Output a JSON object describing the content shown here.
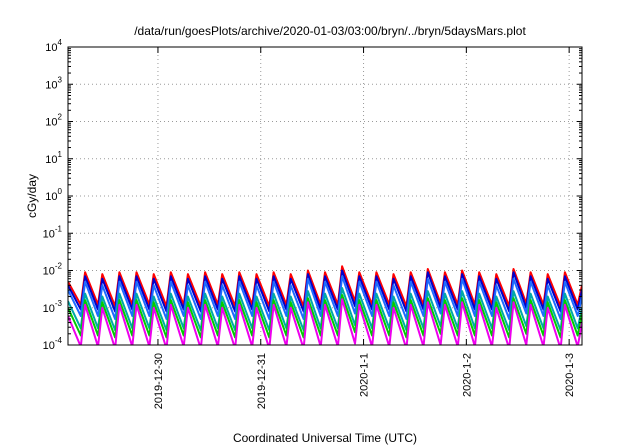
{
  "chart_data": {
    "type": "line",
    "title": "/data/run/goesPlots/archive/2020-01-03/03:00/bryn/../bryn/5daysMars.plot",
    "xlabel": "Coordinated Universal Time (UTC)",
    "ylabel": "cGy/day",
    "yscale": "log",
    "ylim": [
      0.0001,
      10000
    ],
    "xlim": [
      "2019-12-29 03:00",
      "2020-01-03 03:00"
    ],
    "grid": true,
    "y_ticks": [
      {
        "base": "10",
        "exp": "-4",
        "value": 0.0001
      },
      {
        "base": "10",
        "exp": "-3",
        "value": 0.001
      },
      {
        "base": "10",
        "exp": "-2",
        "value": 0.01
      },
      {
        "base": "10",
        "exp": "-1",
        "value": 0.1
      },
      {
        "base": "10",
        "exp": "0",
        "value": 1
      },
      {
        "base": "10",
        "exp": "1",
        "value": 10
      },
      {
        "base": "10",
        "exp": "2",
        "value": 100
      },
      {
        "base": "10",
        "exp": "3",
        "value": 1000
      },
      {
        "base": "10",
        "exp": "4",
        "value": 10000
      }
    ],
    "x_ticks": [
      {
        "label": "2019-12-30",
        "value": "2019-12-30 00:00"
      },
      {
        "label": "2019-12-31",
        "value": "2019-12-31 00:00"
      },
      {
        "label": "2020-1-1",
        "value": "2020-01-01 00:00"
      },
      {
        "label": "2020-1-2",
        "value": "2020-01-02 00:00"
      },
      {
        "label": "2020-1-3",
        "value": "2020-01-03 00:00"
      }
    ],
    "series": [
      {
        "color": "#ff0000",
        "x": [
          "2019-12-29 03:00",
          "2019-12-29 06:00",
          "2019-12-29 07:00",
          "2019-12-29 10:00",
          "2019-12-29 11:00",
          "2019-12-29 14:00",
          "2019-12-29 15:00",
          "2019-12-29 18:00",
          "2019-12-29 19:00",
          "2019-12-29 22:00",
          "2019-12-29 23:00",
          "2019-12-30 02:00",
          "2019-12-30 03:00",
          "2019-12-30 06:00",
          "2019-12-30 07:00",
          "2019-12-30 10:00",
          "2019-12-30 11:00",
          "2019-12-30 14:00",
          "2019-12-30 15:00",
          "2019-12-30 18:00",
          "2019-12-30 19:00",
          "2019-12-30 22:00",
          "2019-12-30 23:00",
          "2019-12-31 02:00",
          "2019-12-31 03:00",
          "2019-12-31 06:00",
          "2019-12-31 07:00",
          "2019-12-31 10:00",
          "2019-12-31 11:00",
          "2019-12-31 14:00",
          "2019-12-31 15:00",
          "2019-12-31 18:00",
          "2019-12-31 19:00",
          "2019-12-31 22:00",
          "2019-12-31 23:00",
          "2020-01-01 02:00",
          "2020-01-01 03:00",
          "2020-01-01 06:00",
          "2020-01-01 07:00",
          "2020-01-01 10:00",
          "2020-01-01 11:00",
          "2020-01-01 14:00",
          "2020-01-01 15:00",
          "2020-01-01 18:00",
          "2020-01-01 19:00",
          "2020-01-01 22:00",
          "2020-01-01 23:00",
          "2020-01-02 02:00",
          "2020-01-02 03:00",
          "2020-01-02 06:00",
          "2020-01-02 07:00",
          "2020-01-02 10:00",
          "2020-01-02 11:00",
          "2020-01-02 14:00",
          "2020-01-02 15:00",
          "2020-01-02 18:00",
          "2020-01-02 19:00",
          "2020-01-02 22:00",
          "2020-01-02 23:00",
          "2020-01-03 02:00",
          "2020-01-03 03:00"
        ],
        "y": [
          0.005,
          0.0012,
          0.009,
          0.0012,
          0.008,
          0.0011,
          0.009,
          0.0012,
          0.009,
          0.0012,
          0.008,
          0.0011,
          0.009,
          0.0012,
          0.008,
          0.0011,
          0.009,
          0.0012,
          0.008,
          0.0011,
          0.009,
          0.0012,
          0.008,
          0.0011,
          0.009,
          0.0012,
          0.008,
          0.0011,
          0.01,
          0.0012,
          0.009,
          0.0012,
          0.013,
          0.0015,
          0.009,
          0.0012,
          0.009,
          0.0012,
          0.008,
          0.0011,
          0.009,
          0.0012,
          0.011,
          0.0013,
          0.009,
          0.0012,
          0.01,
          0.0012,
          0.009,
          0.0012,
          0.008,
          0.0011,
          0.011,
          0.0013,
          0.009,
          0.0012,
          0.008,
          0.0011,
          0.009,
          0.0012,
          0.004
        ]
      },
      {
        "color": "#0000cc",
        "x": [
          "2019-12-29 03:00",
          "2019-12-29 06:00",
          "2019-12-29 07:00",
          "2019-12-29 10:00",
          "2019-12-29 11:00",
          "2019-12-29 14:00",
          "2019-12-29 15:00",
          "2019-12-29 18:00",
          "2019-12-29 19:00",
          "2019-12-29 22:00",
          "2019-12-29 23:00",
          "2019-12-30 02:00",
          "2019-12-30 03:00",
          "2019-12-30 06:00",
          "2019-12-30 07:00",
          "2019-12-30 10:00",
          "2019-12-30 11:00",
          "2019-12-30 14:00",
          "2019-12-30 15:00",
          "2019-12-30 18:00",
          "2019-12-30 19:00",
          "2019-12-30 22:00",
          "2019-12-30 23:00",
          "2019-12-31 02:00",
          "2019-12-31 03:00",
          "2019-12-31 06:00",
          "2019-12-31 07:00",
          "2019-12-31 10:00",
          "2019-12-31 11:00",
          "2019-12-31 14:00",
          "2019-12-31 15:00",
          "2019-12-31 18:00",
          "2019-12-31 19:00",
          "2019-12-31 22:00",
          "2019-12-31 23:00",
          "2020-01-01 02:00",
          "2020-01-01 03:00",
          "2020-01-01 06:00",
          "2020-01-01 07:00",
          "2020-01-01 10:00",
          "2020-01-01 11:00",
          "2020-01-01 14:00",
          "2020-01-01 15:00",
          "2020-01-01 18:00",
          "2020-01-01 19:00",
          "2020-01-01 22:00",
          "2020-01-01 23:00",
          "2020-01-02 02:00",
          "2020-01-02 03:00",
          "2020-01-02 06:00",
          "2020-01-02 07:00",
          "2020-01-02 10:00",
          "2020-01-02 11:00",
          "2020-01-02 14:00",
          "2020-01-02 15:00",
          "2020-01-02 18:00",
          "2020-01-02 19:00",
          "2020-01-02 22:00",
          "2020-01-02 23:00",
          "2020-01-03 02:00",
          "2020-01-03 03:00"
        ],
        "y": [
          0.004,
          0.0009,
          0.007,
          0.0009,
          0.006,
          0.0008,
          0.007,
          0.0009,
          0.007,
          0.0009,
          0.006,
          0.0008,
          0.007,
          0.0009,
          0.006,
          0.0008,
          0.007,
          0.0009,
          0.006,
          0.0008,
          0.007,
          0.0009,
          0.006,
          0.0008,
          0.007,
          0.0009,
          0.006,
          0.0008,
          0.008,
          0.0009,
          0.007,
          0.0009,
          0.01,
          0.0011,
          0.007,
          0.0009,
          0.007,
          0.0009,
          0.006,
          0.0008,
          0.007,
          0.0009,
          0.009,
          0.001,
          0.007,
          0.0009,
          0.008,
          0.0009,
          0.007,
          0.0009,
          0.006,
          0.0008,
          0.009,
          0.001,
          0.007,
          0.0009,
          0.006,
          0.0008,
          0.007,
          0.0009,
          0.003
        ]
      },
      {
        "color": "#1e6bff",
        "x": [
          "2019-12-29 03:00",
          "2019-12-29 06:00",
          "2019-12-29 07:00",
          "2019-12-29 10:00",
          "2019-12-29 11:00",
          "2019-12-29 14:00",
          "2019-12-29 15:00",
          "2019-12-29 18:00",
          "2019-12-29 19:00",
          "2019-12-29 22:00",
          "2019-12-29 23:00",
          "2019-12-30 02:00",
          "2019-12-30 03:00",
          "2019-12-30 06:00",
          "2019-12-30 07:00",
          "2019-12-30 10:00",
          "2019-12-30 11:00",
          "2019-12-30 14:00",
          "2019-12-30 15:00",
          "2019-12-30 18:00",
          "2019-12-30 19:00",
          "2019-12-30 22:00",
          "2019-12-30 23:00",
          "2019-12-31 02:00",
          "2019-12-31 03:00",
          "2019-12-31 06:00",
          "2019-12-31 07:00",
          "2019-12-31 10:00",
          "2019-12-31 11:00",
          "2019-12-31 14:00",
          "2019-12-31 15:00",
          "2019-12-31 18:00",
          "2019-12-31 19:00",
          "2019-12-31 22:00",
          "2019-12-31 23:00",
          "2020-01-01 02:00",
          "2020-01-01 03:00",
          "2020-01-01 06:00",
          "2020-01-01 07:00",
          "2020-01-01 10:00",
          "2020-01-01 11:00",
          "2020-01-01 14:00",
          "2020-01-01 15:00",
          "2020-01-01 18:00",
          "2020-01-01 19:00",
          "2020-01-01 22:00",
          "2020-01-01 23:00",
          "2020-01-02 02:00",
          "2020-01-02 03:00",
          "2020-01-02 06:00",
          "2020-01-02 07:00",
          "2020-01-02 10:00",
          "2020-01-02 11:00",
          "2020-01-02 14:00",
          "2020-01-02 15:00",
          "2020-01-02 18:00",
          "2020-01-02 19:00",
          "2020-01-02 22:00",
          "2020-01-02 23:00",
          "2020-01-03 02:00",
          "2020-01-03 03:00"
        ],
        "y": [
          0.003,
          0.0006,
          0.005,
          0.0006,
          0.004,
          0.0005,
          0.005,
          0.0006,
          0.005,
          0.0006,
          0.004,
          0.0005,
          0.005,
          0.0006,
          0.004,
          0.0005,
          0.005,
          0.0006,
          0.004,
          0.0005,
          0.005,
          0.0006,
          0.004,
          0.0005,
          0.005,
          0.0006,
          0.004,
          0.0005,
          0.006,
          0.0006,
          0.005,
          0.0006,
          0.007,
          0.0007,
          0.005,
          0.0006,
          0.005,
          0.0006,
          0.004,
          0.0005,
          0.005,
          0.0006,
          0.006,
          0.0007,
          0.005,
          0.0006,
          0.006,
          0.0006,
          0.005,
          0.0006,
          0.004,
          0.0005,
          0.006,
          0.0007,
          0.005,
          0.0006,
          0.004,
          0.0005,
          0.005,
          0.0006,
          0.002
        ]
      },
      {
        "color": "#00a8a8",
        "x": [
          "2019-12-29 03:00",
          "2019-12-29 06:00",
          "2019-12-29 07:00",
          "2019-12-29 10:00",
          "2019-12-29 11:00",
          "2019-12-29 14:00",
          "2019-12-29 15:00",
          "2019-12-29 18:00",
          "2019-12-29 19:00",
          "2019-12-29 22:00",
          "2019-12-29 23:00",
          "2019-12-30 02:00",
          "2019-12-30 03:00",
          "2019-12-30 06:00",
          "2019-12-30 07:00",
          "2019-12-30 10:00",
          "2019-12-30 11:00",
          "2019-12-30 14:00",
          "2019-12-30 15:00",
          "2019-12-30 18:00",
          "2019-12-30 19:00",
          "2019-12-30 22:00",
          "2019-12-30 23:00",
          "2019-12-31 02:00",
          "2019-12-31 03:00",
          "2019-12-31 06:00",
          "2019-12-31 07:00",
          "2019-12-31 10:00",
          "2019-12-31 11:00",
          "2019-12-31 14:00",
          "2019-12-31 15:00",
          "2019-12-31 18:00",
          "2019-12-31 19:00",
          "2019-12-31 22:00",
          "2019-12-31 23:00",
          "2020-01-01 02:00",
          "2020-01-01 03:00",
          "2020-01-01 06:00",
          "2020-01-01 07:00",
          "2020-01-01 10:00",
          "2020-01-01 11:00",
          "2020-01-01 14:00",
          "2020-01-01 15:00",
          "2020-01-01 18:00",
          "2020-01-01 19:00",
          "2020-01-01 22:00",
          "2020-01-01 23:00",
          "2020-01-02 02:00",
          "2020-01-02 03:00",
          "2020-01-02 06:00",
          "2020-01-02 07:00",
          "2020-01-02 10:00",
          "2020-01-02 11:00",
          "2020-01-02 14:00",
          "2020-01-02 15:00",
          "2020-01-02 18:00",
          "2020-01-02 19:00",
          "2020-01-02 22:00",
          "2020-01-02 23:00",
          "2020-01-03 02:00",
          "2020-01-03 03:00"
        ],
        "y": [
          0.0015,
          0.00028,
          0.0024,
          0.00028,
          0.002,
          0.00025,
          0.0024,
          0.00028,
          0.0024,
          0.00028,
          0.002,
          0.00025,
          0.0024,
          0.00028,
          0.002,
          0.00025,
          0.0024,
          0.00028,
          0.002,
          0.00025,
          0.0024,
          0.00028,
          0.002,
          0.00025,
          0.0024,
          0.00028,
          0.002,
          0.00025,
          0.0028,
          0.00028,
          0.0024,
          0.00028,
          0.0034,
          0.00034,
          0.0024,
          0.00028,
          0.0024,
          0.00028,
          0.002,
          0.00025,
          0.0024,
          0.00028,
          0.0028,
          0.00032,
          0.0024,
          0.00028,
          0.0028,
          0.00028,
          0.0024,
          0.00028,
          0.002,
          0.00025,
          0.0028,
          0.00032,
          0.0024,
          0.00028,
          0.002,
          0.00025,
          0.0024,
          0.00028,
          0.001
        ]
      },
      {
        "color": "#00cc00",
        "x": [
          "2019-12-29 03:00",
          "2019-12-29 06:00",
          "2019-12-29 07:00",
          "2019-12-29 10:00",
          "2019-12-29 11:00",
          "2019-12-29 14:00",
          "2019-12-29 15:00",
          "2019-12-29 18:00",
          "2019-12-29 19:00",
          "2019-12-29 22:00",
          "2019-12-29 23:00",
          "2019-12-30 02:00",
          "2019-12-30 03:00",
          "2019-12-30 06:00",
          "2019-12-30 07:00",
          "2019-12-30 10:00",
          "2019-12-30 11:00",
          "2019-12-30 14:00",
          "2019-12-30 15:00",
          "2019-12-30 18:00",
          "2019-12-30 19:00",
          "2019-12-30 22:00",
          "2019-12-30 23:00",
          "2019-12-31 02:00",
          "2019-12-31 03:00",
          "2019-12-31 06:00",
          "2019-12-31 07:00",
          "2019-12-31 10:00",
          "2019-12-31 11:00",
          "2019-12-31 14:00",
          "2019-12-31 15:00",
          "2019-12-31 18:00",
          "2019-12-31 19:00",
          "2019-12-31 22:00",
          "2019-12-31 23:00",
          "2020-01-01 02:00",
          "2020-01-01 03:00",
          "2020-01-01 06:00",
          "2020-01-01 07:00",
          "2020-01-01 10:00",
          "2020-01-01 11:00",
          "2020-01-01 14:00",
          "2020-01-01 15:00",
          "2020-01-01 18:00",
          "2020-01-01 19:00",
          "2020-01-01 22:00",
          "2020-01-01 23:00",
          "2020-01-02 02:00",
          "2020-01-02 03:00",
          "2020-01-02 06:00",
          "2020-01-02 07:00",
          "2020-01-02 10:00",
          "2020-01-02 11:00",
          "2020-01-02 14:00",
          "2020-01-02 15:00",
          "2020-01-02 18:00",
          "2020-01-02 19:00",
          "2020-01-02 22:00",
          "2020-01-02 23:00",
          "2020-01-03 02:00",
          "2020-01-03 03:00"
        ],
        "y": [
          0.001,
          0.00018,
          0.0016,
          0.00018,
          0.0014,
          0.00016,
          0.0016,
          0.00018,
          0.0016,
          0.00018,
          0.0014,
          0.00016,
          0.0016,
          0.00018,
          0.0014,
          0.00016,
          0.0016,
          0.00018,
          0.0014,
          0.00016,
          0.0016,
          0.00018,
          0.0014,
          0.00016,
          0.0016,
          0.00018,
          0.0014,
          0.00016,
          0.0018,
          0.00018,
          0.0016,
          0.00018,
          0.0022,
          0.00022,
          0.0016,
          0.00018,
          0.0016,
          0.00018,
          0.0014,
          0.00016,
          0.0016,
          0.00018,
          0.0018,
          0.0002,
          0.0016,
          0.00018,
          0.0018,
          0.00018,
          0.0016,
          0.00018,
          0.0014,
          0.00016,
          0.0018,
          0.0002,
          0.0016,
          0.00018,
          0.0014,
          0.00016,
          0.0016,
          0.00018,
          0.0007
        ]
      },
      {
        "color": "#ee00ee",
        "x": [
          "2019-12-29 03:00",
          "2019-12-29 06:00",
          "2019-12-29 07:00",
          "2019-12-29 10:00",
          "2019-12-29 11:00",
          "2019-12-29 14:00",
          "2019-12-29 15:00",
          "2019-12-29 18:00",
          "2019-12-29 19:00",
          "2019-12-29 22:00",
          "2019-12-29 23:00",
          "2019-12-30 02:00",
          "2019-12-30 03:00",
          "2019-12-30 06:00",
          "2019-12-30 07:00",
          "2019-12-30 10:00",
          "2019-12-30 11:00",
          "2019-12-30 14:00",
          "2019-12-30 15:00",
          "2019-12-30 18:00",
          "2019-12-30 19:00",
          "2019-12-30 22:00",
          "2019-12-30 23:00",
          "2019-12-31 02:00",
          "2019-12-31 03:00",
          "2019-12-31 06:00",
          "2019-12-31 07:00",
          "2019-12-31 10:00",
          "2019-12-31 11:00",
          "2019-12-31 14:00",
          "2019-12-31 15:00",
          "2019-12-31 18:00",
          "2019-12-31 19:00",
          "2019-12-31 22:00",
          "2019-12-31 23:00",
          "2020-01-01 02:00",
          "2020-01-01 03:00",
          "2020-01-01 06:00",
          "2020-01-01 07:00",
          "2020-01-01 10:00",
          "2020-01-01 11:00",
          "2020-01-01 14:00",
          "2020-01-01 15:00",
          "2020-01-01 18:00",
          "2020-01-01 19:00",
          "2020-01-01 22:00",
          "2020-01-01 23:00",
          "2020-01-02 02:00",
          "2020-01-02 03:00",
          "2020-01-02 06:00",
          "2020-01-02 07:00",
          "2020-01-02 10:00",
          "2020-01-02 11:00",
          "2020-01-02 14:00",
          "2020-01-02 15:00",
          "2020-01-02 18:00",
          "2020-01-02 19:00",
          "2020-01-02 22:00",
          "2020-01-02 23:00",
          "2020-01-03 02:00",
          "2020-01-03 03:00"
        ],
        "y": [
          0.0006,
          9e-05,
          0.0012,
          9e-05,
          0.001,
          8e-05,
          0.0012,
          9e-05,
          0.0012,
          9e-05,
          0.001,
          8e-05,
          0.0012,
          9e-05,
          0.001,
          8e-05,
          0.0012,
          9e-05,
          0.001,
          8e-05,
          0.0012,
          9e-05,
          0.001,
          8e-05,
          0.0012,
          9e-05,
          0.001,
          8e-05,
          0.0014,
          9e-05,
          0.0012,
          9e-05,
          0.0017,
          0.00011,
          0.0012,
          9e-05,
          0.0012,
          9e-05,
          0.001,
          8e-05,
          0.0012,
          9e-05,
          0.0014,
          0.0001,
          0.0012,
          9e-05,
          0.0014,
          9e-05,
          0.0012,
          9e-05,
          0.001,
          8e-05,
          0.0014,
          0.0001,
          0.0012,
          9e-05,
          0.001,
          8e-05,
          0.0012,
          9e-05,
          0.0004
        ]
      }
    ]
  }
}
